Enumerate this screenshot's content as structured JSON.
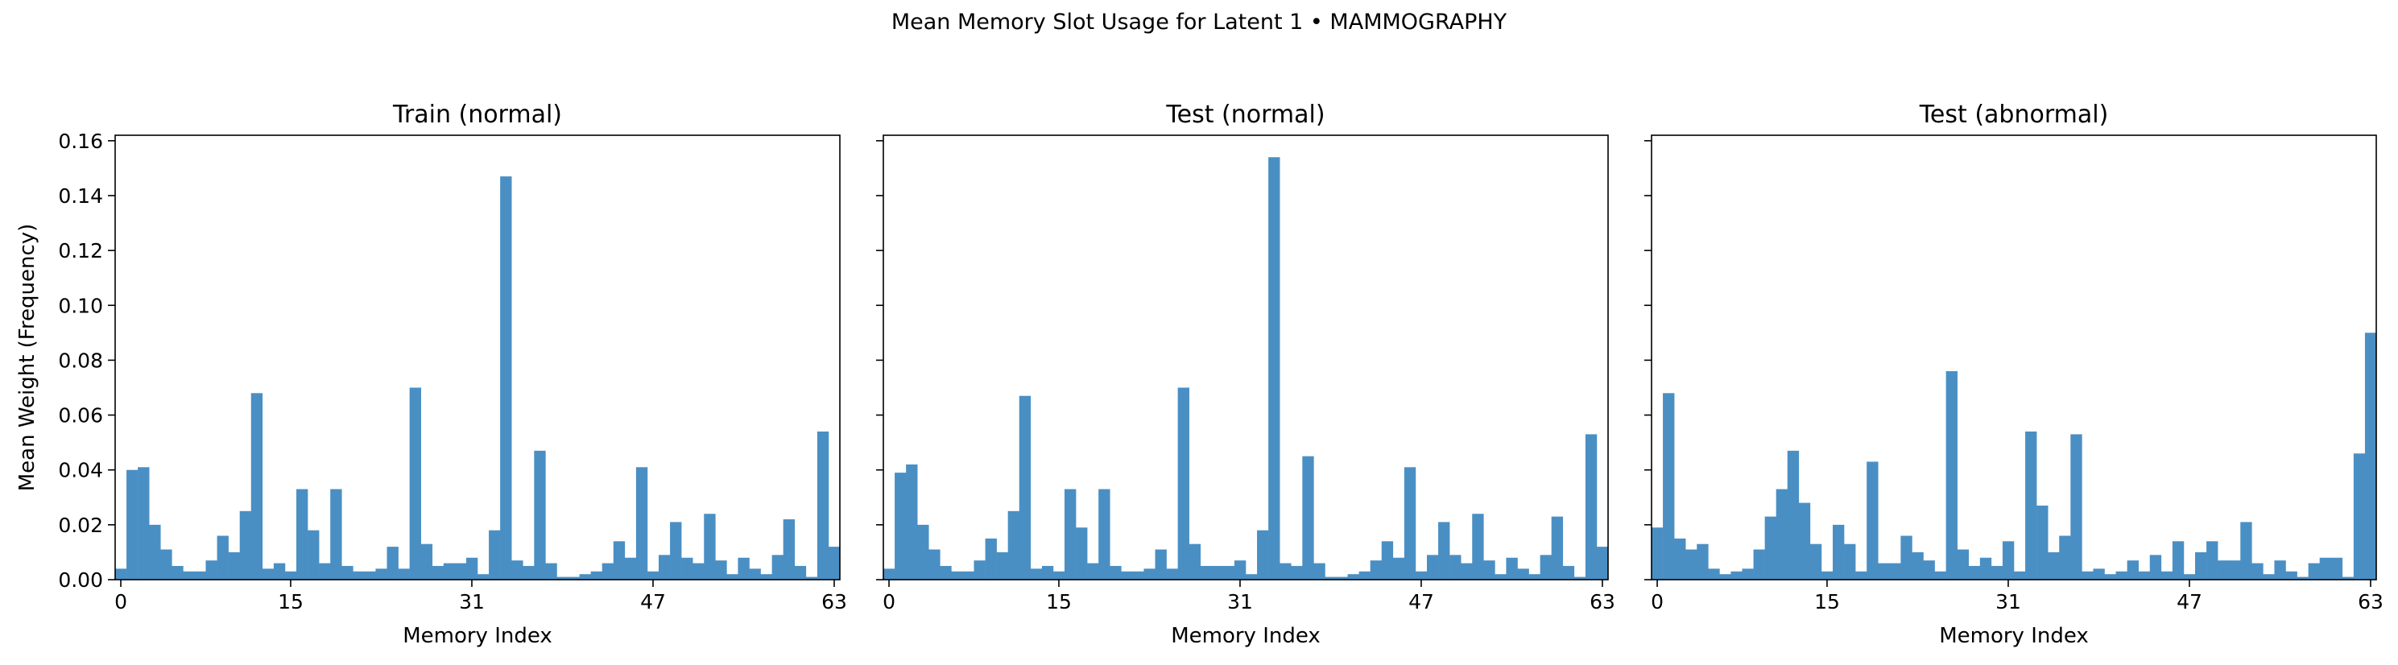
{
  "figure": {
    "title": "Mean Memory Slot Usage for Latent 1 • MAMMOGRAPHY"
  },
  "chart_data": [
    {
      "type": "bar",
      "title": "Train (normal)",
      "xlabel": "Memory Index",
      "ylabel": "Mean Weight (Frequency)",
      "xticks": [
        0,
        15,
        31,
        47,
        63
      ],
      "yticks": [
        "0.00",
        "0.02",
        "0.04",
        "0.06",
        "0.08",
        "0.10",
        "0.12",
        "0.14",
        "0.16"
      ],
      "ylim": [
        0,
        0.162
      ],
      "xlim": [
        -0.5,
        63.5
      ],
      "color": "#4a8fc4",
      "values": [
        0.004,
        0.04,
        0.041,
        0.02,
        0.011,
        0.005,
        0.003,
        0.003,
        0.007,
        0.016,
        0.01,
        0.025,
        0.068,
        0.004,
        0.006,
        0.003,
        0.033,
        0.018,
        0.006,
        0.033,
        0.005,
        0.003,
        0.003,
        0.004,
        0.012,
        0.004,
        0.07,
        0.013,
        0.005,
        0.006,
        0.006,
        0.008,
        0.002,
        0.018,
        0.147,
        0.007,
        0.005,
        0.047,
        0.006,
        0.001,
        0.001,
        0.002,
        0.003,
        0.006,
        0.014,
        0.008,
        0.041,
        0.003,
        0.009,
        0.021,
        0.008,
        0.006,
        0.024,
        0.007,
        0.002,
        0.008,
        0.004,
        0.002,
        0.009,
        0.022,
        0.005,
        0.001,
        0.054,
        0.012
      ]
    },
    {
      "type": "bar",
      "title": "Test (normal)",
      "xlabel": "Memory Index",
      "ylabel": "",
      "xticks": [
        0,
        15,
        31,
        47,
        63
      ],
      "ylim": [
        0,
        0.162
      ],
      "xlim": [
        -0.5,
        63.5
      ],
      "color": "#4a8fc4",
      "values": [
        0.004,
        0.039,
        0.042,
        0.02,
        0.011,
        0.005,
        0.003,
        0.003,
        0.007,
        0.015,
        0.01,
        0.025,
        0.067,
        0.004,
        0.005,
        0.003,
        0.033,
        0.019,
        0.006,
        0.033,
        0.005,
        0.003,
        0.003,
        0.004,
        0.011,
        0.004,
        0.07,
        0.013,
        0.005,
        0.005,
        0.005,
        0.007,
        0.002,
        0.018,
        0.154,
        0.006,
        0.005,
        0.045,
        0.006,
        0.001,
        0.001,
        0.002,
        0.003,
        0.007,
        0.014,
        0.008,
        0.041,
        0.003,
        0.009,
        0.021,
        0.009,
        0.006,
        0.024,
        0.007,
        0.002,
        0.008,
        0.004,
        0.002,
        0.009,
        0.023,
        0.005,
        0.001,
        0.053,
        0.012
      ]
    },
    {
      "type": "bar",
      "title": "Test (abnormal)",
      "xlabel": "Memory Index",
      "ylabel": "",
      "xticks": [
        0,
        15,
        31,
        47,
        63
      ],
      "ylim": [
        0,
        0.162
      ],
      "xlim": [
        -0.5,
        63.5
      ],
      "color": "#4a8fc4",
      "values": [
        0.019,
        0.068,
        0.015,
        0.011,
        0.013,
        0.004,
        0.002,
        0.003,
        0.004,
        0.011,
        0.023,
        0.033,
        0.047,
        0.028,
        0.013,
        0.003,
        0.02,
        0.013,
        0.003,
        0.043,
        0.006,
        0.006,
        0.016,
        0.01,
        0.007,
        0.003,
        0.076,
        0.011,
        0.005,
        0.008,
        0.005,
        0.014,
        0.003,
        0.054,
        0.027,
        0.01,
        0.016,
        0.053,
        0.003,
        0.004,
        0.002,
        0.003,
        0.007,
        0.003,
        0.009,
        0.003,
        0.014,
        0.002,
        0.01,
        0.014,
        0.007,
        0.007,
        0.021,
        0.006,
        0.002,
        0.007,
        0.003,
        0.001,
        0.006,
        0.008,
        0.008,
        0.001,
        0.046,
        0.09
      ]
    }
  ]
}
